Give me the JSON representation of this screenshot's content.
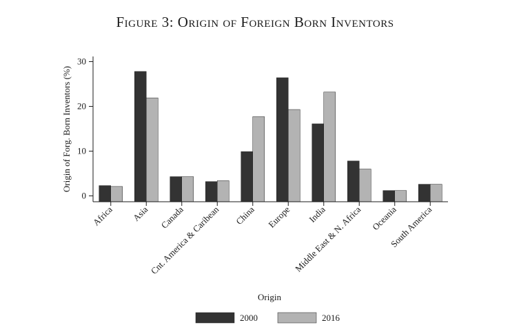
{
  "figure": {
    "title": "Figure 3: Origin of Foreign Born Inventors"
  },
  "chart_data": {
    "type": "bar",
    "title": "Figure 3: Origin of Foreign Born Inventors",
    "xlabel": "Origin",
    "ylabel": "Origin of Forg. Born Inventors (%)",
    "ylim": [
      0,
      31
    ],
    "yticks": [
      0,
      10,
      20,
      30
    ],
    "grid": false,
    "legend_position": "bottom",
    "categories": [
      "Africa",
      "Asia",
      "Canada",
      "Cnt. America & Caribean",
      "China",
      "Europe",
      "India",
      "Middle East & N. Africa",
      "Oceania",
      "South America"
    ],
    "series": [
      {
        "name": "2000",
        "color": "#333333",
        "values": [
          2.3,
          27.8,
          4.3,
          3.2,
          9.9,
          26.4,
          16.1,
          7.8,
          1.2,
          2.6
        ]
      },
      {
        "name": "2016",
        "color": "#b3b3b3",
        "values": [
          2.1,
          21.9,
          4.3,
          3.4,
          17.7,
          19.3,
          23.2,
          6.0,
          1.2,
          2.6
        ]
      }
    ]
  }
}
